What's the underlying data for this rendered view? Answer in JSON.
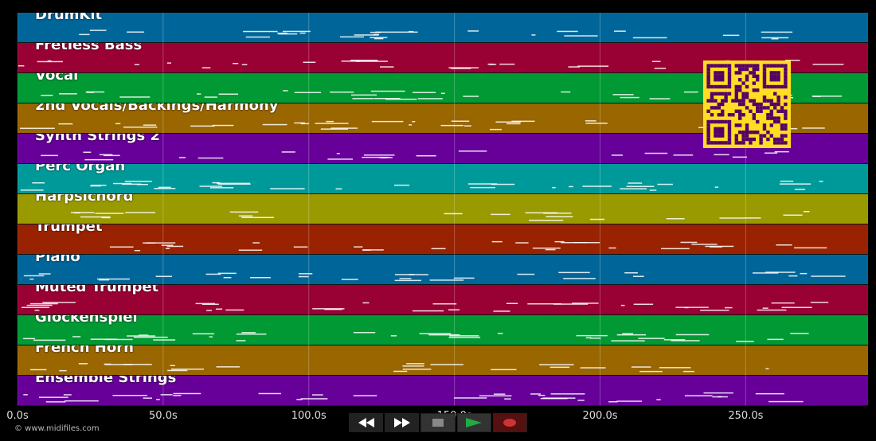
{
  "tracks": [
    {
      "name": "DrumKit",
      "color": "#006699"
    },
    {
      "name": "Fretless Bass",
      "color": "#990033"
    },
    {
      "name": "Vocal",
      "color": "#009933"
    },
    {
      "name": "2nd Vocals/Backings/Harmony",
      "color": "#996600"
    },
    {
      "name": "Synth Strings 2",
      "color": "#660099"
    },
    {
      "name": "Perc Organ",
      "color": "#009999"
    },
    {
      "name": "Harpsichord",
      "color": "#999900"
    },
    {
      "name": "Trumpet",
      "color": "#992200"
    },
    {
      "name": "Piano",
      "color": "#006699"
    },
    {
      "name": "Muted Trumpet",
      "color": "#990033"
    },
    {
      "name": "Glockenspiel",
      "color": "#009933"
    },
    {
      "name": "French Horn",
      "color": "#996600"
    },
    {
      "name": "Ensemble Strings",
      "color": "#660099"
    }
  ],
  "time_axis": {
    "min": 0,
    "max": 292,
    "ticks": [
      {
        "value": 0,
        "label": "0.0s"
      },
      {
        "value": 50,
        "label": "50.0s"
      },
      {
        "value": 100,
        "label": "100.0s"
      },
      {
        "value": 150,
        "label": "150.0s"
      },
      {
        "value": 200,
        "label": "200.0s"
      },
      {
        "value": 250,
        "label": "250.0s"
      }
    ]
  },
  "copyright": "© www.midifiles.com",
  "transport": {
    "buttons": [
      {
        "id": "rewind",
        "icon": "rewind-icon"
      },
      {
        "id": "fast-forward",
        "icon": "fast-forward-icon"
      },
      {
        "id": "stop",
        "icon": "stop-icon"
      },
      {
        "id": "play",
        "icon": "play-icon"
      },
      {
        "id": "record",
        "icon": "record-icon"
      }
    ],
    "colors": {
      "stop": "#888888",
      "play": "#22aa44",
      "record": "#cc3333",
      "bg": "#333333"
    }
  },
  "qr": {
    "icon": "qr-code-icon",
    "fg": "#ffdd22",
    "bg": "#550066"
  }
}
